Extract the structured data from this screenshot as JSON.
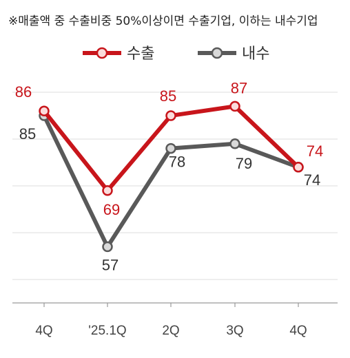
{
  "chart_data": {
    "type": "line",
    "note": "※매출액 중 수출비중 50%이상이면 수출기업, 이하는 내수기업",
    "categories": [
      "4Q",
      "'25.1Q",
      "2Q",
      "3Q",
      "4Q"
    ],
    "series": [
      {
        "name": "수출",
        "values": [
          86,
          69,
          85,
          87,
          74
        ],
        "color": "#c8151b"
      },
      {
        "name": "내수",
        "values": [
          85,
          57,
          78,
          79,
          74
        ],
        "color": "#595959"
      }
    ],
    "ylim": [
      45,
      95
    ],
    "grid": true,
    "legend_position": "top-center",
    "colors": {
      "marker_fill_export": "#fbdcdc",
      "marker_fill_domestic": "#d9d9d9",
      "grid": "#dddddd",
      "axis": "#999999",
      "label_export": "#c8151b",
      "label_domestic": "#333333"
    }
  }
}
